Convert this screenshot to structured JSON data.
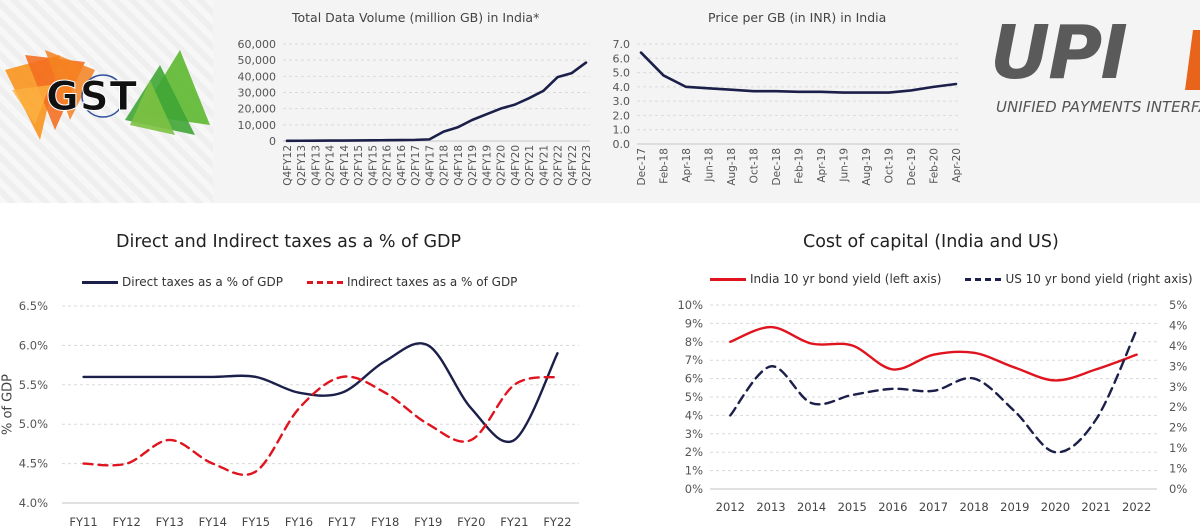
{
  "logos": {
    "gst": {
      "text": "GST",
      "colors": [
        "#f47b20",
        "#4caf24",
        "#1f3a93"
      ]
    },
    "upi": {
      "text": "UPI",
      "subtitle": "UNIFIED PAYMENTS INTERFA",
      "colors": [
        "#5a5a5a",
        "#e8641b"
      ]
    }
  },
  "chart_data": [
    {
      "type": "line",
      "title": "Total Data Volume (million GB) in India*",
      "categories": [
        "Q4FY12",
        "Q2FY13",
        "Q4FY13",
        "Q2FY14",
        "Q4FY14",
        "Q2FY15",
        "Q4FY15",
        "Q2FY16",
        "Q4FY16",
        "Q2FY17",
        "Q4FY17",
        "Q2FY18",
        "Q4FY18",
        "Q2FY19",
        "Q4FY19",
        "Q2FY20",
        "Q4FY20",
        "Q2FY21",
        "Q4FY21",
        "Q2FY22",
        "Q4FY22",
        "Q2FY23"
      ],
      "series": [
        {
          "values": [
            100,
            150,
            200,
            250,
            300,
            350,
            400,
            500,
            600,
            700,
            1000,
            5800,
            8500,
            13000,
            16500,
            20000,
            22500,
            26500,
            31000,
            39500,
            42000,
            48500
          ],
          "color": "#1b1f4a"
        }
      ],
      "ylim": [
        0,
        60000
      ],
      "yticks": [
        "0",
        "10,000",
        "20,000",
        "30,000",
        "40,000",
        "50,000",
        "60,000"
      ],
      "grid": true
    },
    {
      "type": "line",
      "title": "Price per GB (in INR) in India",
      "categories": [
        "Dec-17",
        "Feb-18",
        "Apr-18",
        "Jun-18",
        "Aug-18",
        "Oct-18",
        "Dec-18",
        "Feb-19",
        "Apr-19",
        "Jun-19",
        "Aug-19",
        "Oct-19",
        "Dec-19",
        "Feb-20",
        "Apr-20"
      ],
      "series": [
        {
          "values": [
            6.4,
            4.8,
            4.0,
            3.9,
            3.8,
            3.7,
            3.7,
            3.65,
            3.65,
            3.6,
            3.6,
            3.6,
            3.75,
            4.0,
            4.2
          ],
          "color": "#1b1f4a"
        }
      ],
      "ylim": [
        0,
        7
      ],
      "yticks": [
        "0.0",
        "1.0",
        "2.0",
        "3.0",
        "4.0",
        "5.0",
        "6.0",
        "7.0"
      ],
      "grid": true
    },
    {
      "type": "line",
      "title": "Direct and Indirect taxes as a % of GDP",
      "ylabel": "% of GDP",
      "categories": [
        "FY11",
        "FY12",
        "FY13",
        "FY14",
        "FY15",
        "FY16",
        "FY17",
        "FY18",
        "FY19",
        "FY20",
        "FY21",
        "FY22"
      ],
      "series": [
        {
          "name": "Direct taxes as a % of GDP",
          "values": [
            5.6,
            5.6,
            5.6,
            5.6,
            5.6,
            5.4,
            5.4,
            5.8,
            6.0,
            5.2,
            4.8,
            5.9
          ],
          "color": "#1b1f4a",
          "dash": false
        },
        {
          "name": "Indirect taxes as a % of GDP",
          "values": [
            4.5,
            4.5,
            4.8,
            4.5,
            4.4,
            5.2,
            5.6,
            5.4,
            5.0,
            4.8,
            5.5,
            5.6
          ],
          "color": "#e0141e",
          "dash": true
        }
      ],
      "ylim": [
        4.0,
        6.5
      ],
      "yticks": [
        "4.0%",
        "4.5%",
        "5.0%",
        "5.5%",
        "6.0%",
        "6.5%"
      ],
      "legend": "top",
      "grid": true
    },
    {
      "type": "line",
      "title": "Cost of capital (India and US)",
      "categories": [
        "2012",
        "2013",
        "2014",
        "2015",
        "2016",
        "2017",
        "2018",
        "2019",
        "2020",
        "2021",
        "2022"
      ],
      "series": [
        {
          "name": "India 10 yr bond yield (left axis)",
          "values": [
            8.0,
            8.8,
            7.9,
            7.8,
            6.5,
            7.3,
            7.4,
            6.6,
            5.9,
            6.5,
            7.3
          ],
          "color": "#e0141e",
          "dash": false,
          "axis": "left"
        },
        {
          "name": "US 10 yr bond yield (right axis)",
          "values": [
            1.8,
            3.0,
            2.1,
            2.3,
            2.45,
            2.4,
            2.7,
            1.9,
            0.9,
            1.7,
            3.9
          ],
          "color": "#1b1f4a",
          "dash": true,
          "axis": "right"
        }
      ],
      "ylim": [
        0,
        10
      ],
      "yticks": [
        "0%",
        "1%",
        "2%",
        "3%",
        "4%",
        "5%",
        "6%",
        "7%",
        "8%",
        "9%",
        "10%"
      ],
      "y2lim": [
        0,
        4.5
      ],
      "y2ticks": [
        "0%",
        "1%",
        "1%",
        "2%",
        "2%",
        "3%",
        "3%",
        "4%",
        "4%",
        "5%"
      ],
      "legend": "top",
      "grid": true
    }
  ]
}
